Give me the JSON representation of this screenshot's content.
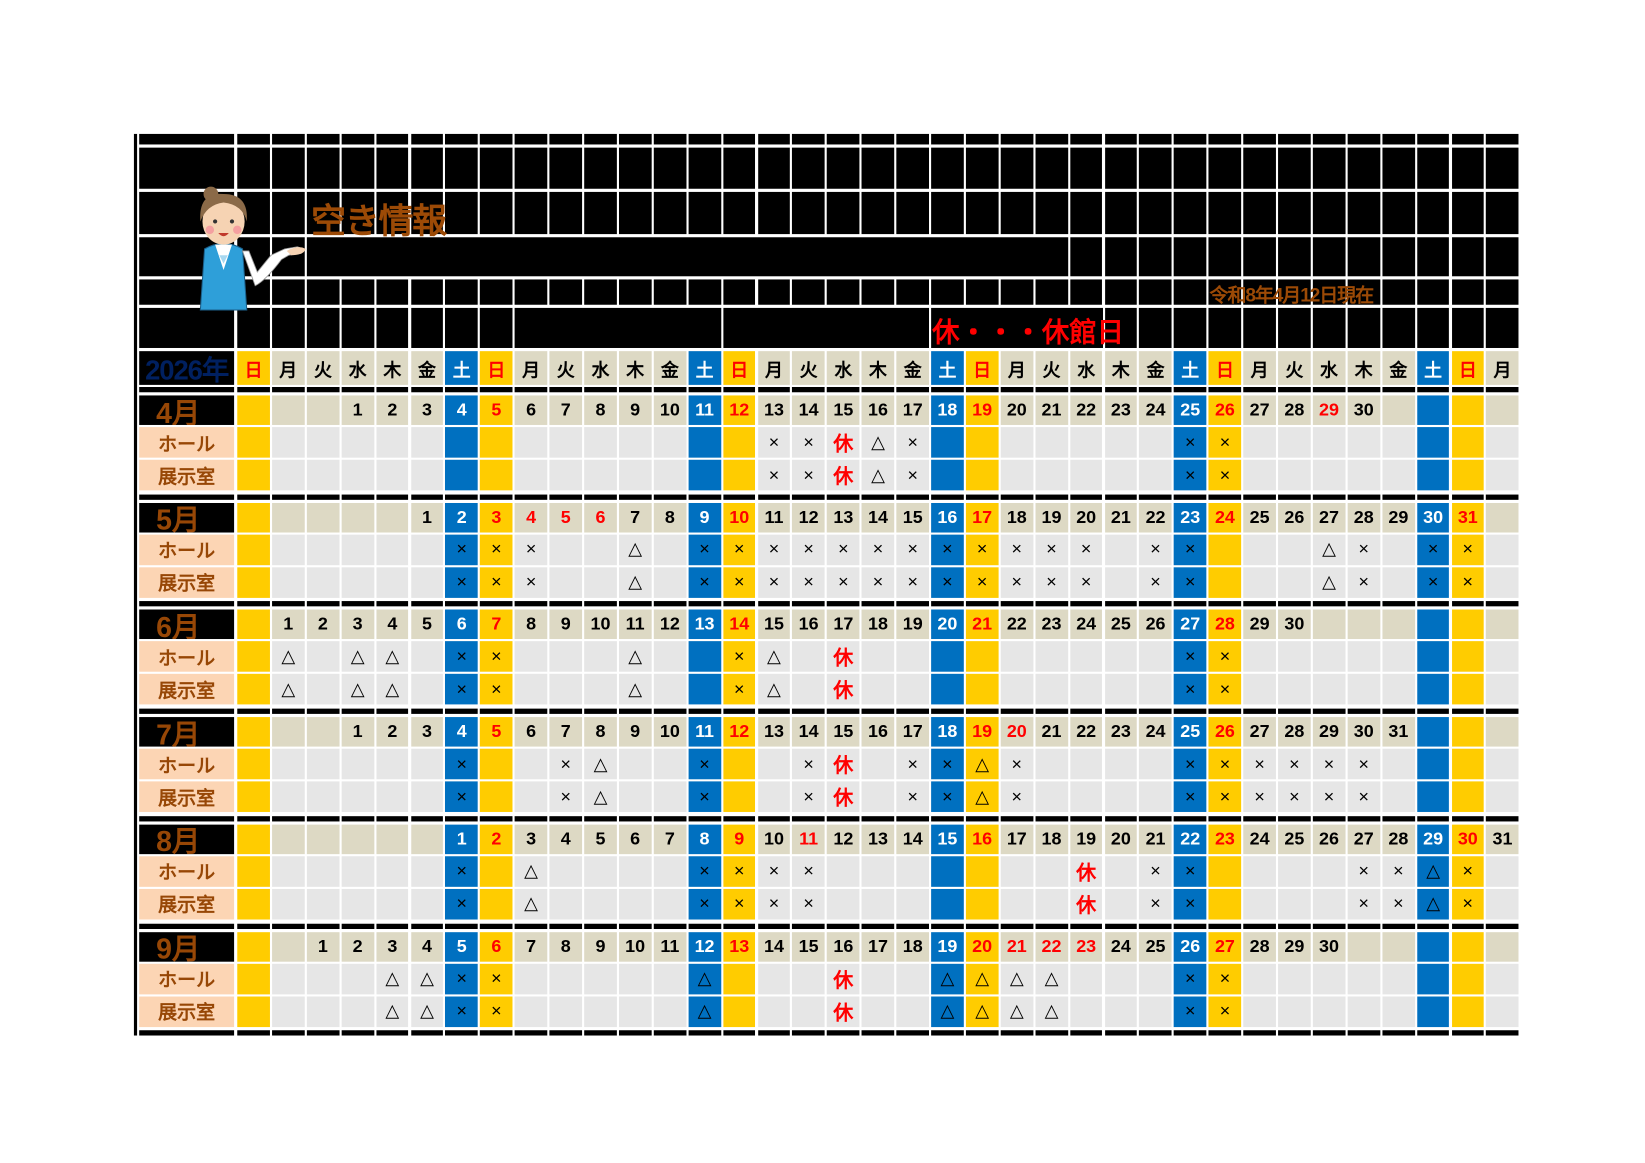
{
  "title": "空き情報",
  "as_of": "令和8年4月12日現在",
  "legend": "休・・・休館日",
  "year_label": "2026年",
  "row_labels": {
    "hall": "ホール",
    "exhibit": "展示室"
  },
  "weekdays": [
    "日",
    "月",
    "火",
    "水",
    "木",
    "金",
    "土",
    "日",
    "月",
    "火",
    "水",
    "木",
    "金",
    "土",
    "日",
    "月",
    "火",
    "水",
    "木",
    "金",
    "土",
    "日",
    "月",
    "火",
    "水",
    "木",
    "金",
    "土",
    "日",
    "月",
    "火",
    "水",
    "木",
    "金",
    "土",
    "日",
    "月"
  ],
  "colors": {
    "saturday": "#0070c0",
    "sunday": "#ffcc00",
    "holiday_text": "#ff0000",
    "date_row": "#ddd9c4",
    "cell": "#e6e6e6",
    "row_label": "#fcd5b4",
    "label_text": "#974706",
    "year_text": "#002060"
  },
  "icons": {
    "mascot": "receptionist-illustration"
  },
  "months": [
    {
      "label": "4月",
      "dates": [
        "",
        "",
        "",
        "1",
        "2",
        "3",
        "4",
        "5",
        "6",
        "7",
        "8",
        "9",
        "10",
        "11",
        "12",
        "13",
        "14",
        "15",
        "16",
        "17",
        "18",
        "19",
        "20",
        "21",
        "22",
        "23",
        "24",
        "25",
        "26",
        "27",
        "28",
        "29",
        "30",
        "",
        "",
        "",
        ""
      ],
      "holidays": [
        "29"
      ],
      "hall": {
        "13": "×",
        "14": "×",
        "15": "休",
        "16": "△",
        "17": "×",
        "25": "×",
        "26": "×"
      },
      "exhibit": {
        "13": "×",
        "14": "×",
        "15": "休",
        "16": "△",
        "17": "×",
        "25": "×",
        "26": "×"
      }
    },
    {
      "label": "5月",
      "dates": [
        "",
        "",
        "",
        "",
        "",
        "1",
        "2",
        "3",
        "4",
        "5",
        "6",
        "7",
        "8",
        "9",
        "10",
        "11",
        "12",
        "13",
        "14",
        "15",
        "16",
        "17",
        "18",
        "19",
        "20",
        "21",
        "22",
        "23",
        "24",
        "25",
        "26",
        "27",
        "28",
        "29",
        "30",
        "31",
        ""
      ],
      "holidays": [
        "3",
        "4",
        "5",
        "6"
      ],
      "hall": {
        "2": "×",
        "3": "×",
        "4": "×",
        "7": "△",
        "9": "×",
        "10": "×",
        "11": "×",
        "12": "×",
        "13": "×",
        "14": "×",
        "15": "×",
        "16": "×",
        "17": "×",
        "18": "×",
        "19": "×",
        "20": "×",
        "22": "×",
        "23": "×",
        "27": "△",
        "28": "×",
        "30": "×",
        "31": "×"
      },
      "exhibit": {
        "2": "×",
        "3": "×",
        "4": "×",
        "7": "△",
        "9": "×",
        "10": "×",
        "11": "×",
        "12": "×",
        "13": "×",
        "14": "×",
        "15": "×",
        "16": "×",
        "17": "×",
        "18": "×",
        "19": "×",
        "20": "×",
        "22": "×",
        "23": "×",
        "27": "△",
        "28": "×",
        "30": "×",
        "31": "×"
      }
    },
    {
      "label": "6月",
      "dates": [
        "",
        "1",
        "2",
        "3",
        "4",
        "5",
        "6",
        "7",
        "8",
        "9",
        "10",
        "11",
        "12",
        "13",
        "14",
        "15",
        "16",
        "17",
        "18",
        "19",
        "20",
        "21",
        "22",
        "23",
        "24",
        "25",
        "26",
        "27",
        "28",
        "29",
        "30",
        "",
        "",
        "",
        "",
        "",
        ""
      ],
      "holidays": [],
      "hall": {
        "1": "△",
        "3": "△",
        "4": "△",
        "6": "×",
        "7": "×",
        "11": "△",
        "14": "×",
        "15": "△",
        "17": "休",
        "27": "×",
        "28": "×"
      },
      "exhibit": {
        "1": "△",
        "3": "△",
        "4": "△",
        "6": "×",
        "7": "×",
        "11": "△",
        "14": "×",
        "15": "△",
        "17": "休",
        "27": "×",
        "28": "×"
      }
    },
    {
      "label": "7月",
      "dates": [
        "",
        "",
        "",
        "1",
        "2",
        "3",
        "4",
        "5",
        "6",
        "7",
        "8",
        "9",
        "10",
        "11",
        "12",
        "13",
        "14",
        "15",
        "16",
        "17",
        "18",
        "19",
        "20",
        "21",
        "22",
        "23",
        "24",
        "25",
        "26",
        "27",
        "28",
        "29",
        "30",
        "31",
        "",
        "",
        ""
      ],
      "holidays": [
        "20"
      ],
      "hall": {
        "4": "×",
        "7": "×",
        "8": "△",
        "11": "×",
        "14": "×",
        "15": "休",
        "17": "×",
        "18": "×",
        "19": "△",
        "20": "×",
        "25": "×",
        "26": "×",
        "27": "×",
        "28": "×",
        "29": "×",
        "30": "×"
      },
      "exhibit": {
        "4": "×",
        "7": "×",
        "8": "△",
        "11": "×",
        "14": "×",
        "15": "休",
        "17": "×",
        "18": "×",
        "19": "△",
        "20": "×",
        "25": "×",
        "26": "×",
        "27": "×",
        "28": "×",
        "29": "×",
        "30": "×"
      }
    },
    {
      "label": "8月",
      "dates": [
        "",
        "",
        "",
        "",
        "",
        "",
        "1",
        "2",
        "3",
        "4",
        "5",
        "6",
        "7",
        "8",
        "9",
        "10",
        "11",
        "12",
        "13",
        "14",
        "15",
        "16",
        "17",
        "18",
        "19",
        "20",
        "21",
        "22",
        "23",
        "24",
        "25",
        "26",
        "27",
        "28",
        "29",
        "30",
        "31"
      ],
      "holidays": [
        "11"
      ],
      "hall": {
        "1": "×",
        "3": "△",
        "8": "×",
        "9": "×",
        "10": "×",
        "11": "×",
        "19": "休",
        "21": "×",
        "22": "×",
        "27": "×",
        "28": "×",
        "29": "△",
        "30": "×"
      },
      "exhibit": {
        "1": "×",
        "3": "△",
        "8": "×",
        "9": "×",
        "10": "×",
        "11": "×",
        "19": "休",
        "21": "×",
        "22": "×",
        "27": "×",
        "28": "×",
        "29": "△",
        "30": "×"
      }
    },
    {
      "label": "9月",
      "dates": [
        "",
        "",
        "1",
        "2",
        "3",
        "4",
        "5",
        "6",
        "7",
        "8",
        "9",
        "10",
        "11",
        "12",
        "13",
        "14",
        "15",
        "16",
        "17",
        "18",
        "19",
        "20",
        "21",
        "22",
        "23",
        "24",
        "25",
        "26",
        "27",
        "28",
        "29",
        "30",
        "",
        "",
        "",
        "",
        ""
      ],
      "holidays": [
        "21",
        "22",
        "23"
      ],
      "hall": {
        "3": "△",
        "4": "△",
        "5": "×",
        "6": "×",
        "12": "△",
        "16": "休",
        "19": "△",
        "20": "△",
        "21": "△",
        "22": "△",
        "26": "×",
        "27": "×"
      },
      "exhibit": {
        "3": "△",
        "4": "△",
        "5": "×",
        "6": "×",
        "12": "△",
        "16": "休",
        "19": "△",
        "20": "△",
        "21": "△",
        "22": "△",
        "26": "×",
        "27": "×"
      }
    }
  ]
}
